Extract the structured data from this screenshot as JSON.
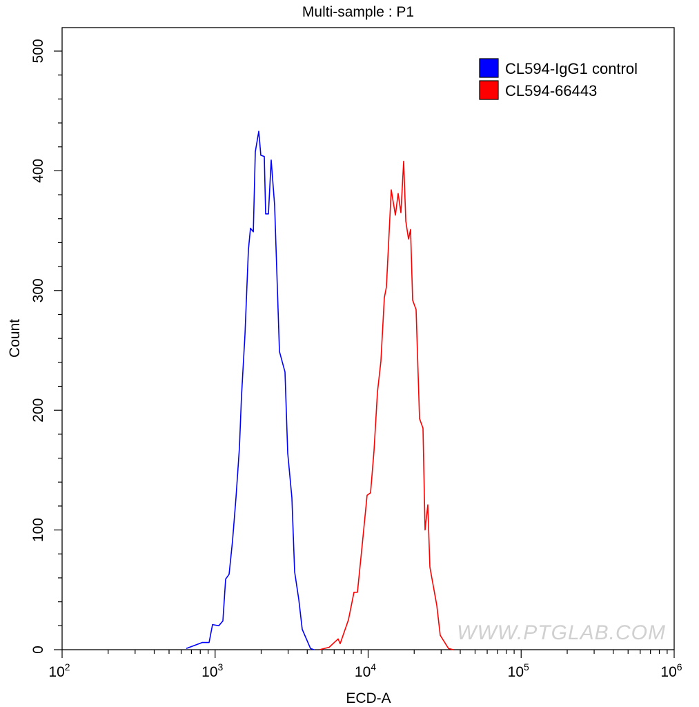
{
  "chart_data": {
    "type": "line",
    "title": "Multi-sample : P1",
    "xlabel": "ECD-A",
    "ylabel": "Count",
    "xscale": "log",
    "xlim": [
      100,
      1000000
    ],
    "ylim": [
      0,
      520
    ],
    "x_ticks": [
      {
        "base": "10",
        "exp": "2"
      },
      {
        "base": "10",
        "exp": "3"
      },
      {
        "base": "10",
        "exp": "4"
      },
      {
        "base": "10",
        "exp": "5"
      },
      {
        "base": "10",
        "exp": "6"
      }
    ],
    "y_ticks": [
      "0",
      "100",
      "200",
      "300",
      "400",
      "500"
    ],
    "grid": false,
    "legend_position": "top-right",
    "series": [
      {
        "name": "CL594-IgG1 control",
        "color": "#0000ff",
        "x": [
          648,
          823,
          913,
          962,
          1056,
          1124,
          1172,
          1234,
          1300,
          1369,
          1442,
          1488,
          1567,
          1651,
          1703,
          1776,
          1831,
          1929,
          1990,
          2096,
          2140,
          2230,
          2325,
          2449,
          2634,
          2861,
          2983,
          3174,
          3309,
          3522,
          3710,
          4202,
          4426
        ],
        "y": [
          1,
          6,
          6,
          21,
          20,
          24,
          59,
          63,
          91,
          127,
          169,
          212,
          263,
          334,
          352,
          349,
          416,
          433,
          413,
          412,
          364,
          364,
          409,
          371,
          249,
          232,
          164,
          127,
          65,
          42,
          17,
          1,
          0
        ]
      },
      {
        "name": "CL594-66443",
        "color": "#ff0000",
        "x": [
          4809,
          5563,
          6367,
          6569,
          7438,
          8084,
          8513,
          9155,
          9845,
          10370,
          10920,
          11510,
          12120,
          12760,
          13170,
          14160,
          15070,
          15710,
          16380,
          17070,
          17620,
          18360,
          18940,
          19540,
          20580,
          21680,
          22830,
          23560,
          24550,
          25330,
          28100,
          29600,
          33520,
          36060
        ],
        "y": [
          0,
          2,
          9,
          5,
          25,
          48,
          48,
          88,
          129,
          131,
          166,
          215,
          241,
          294,
          303,
          384,
          363,
          381,
          365,
          408,
          358,
          343,
          351,
          292,
          284,
          193,
          185,
          100,
          121,
          69,
          37,
          12,
          1,
          0
        ]
      }
    ],
    "watermark": "WWW.PTGLAB.COM"
  }
}
